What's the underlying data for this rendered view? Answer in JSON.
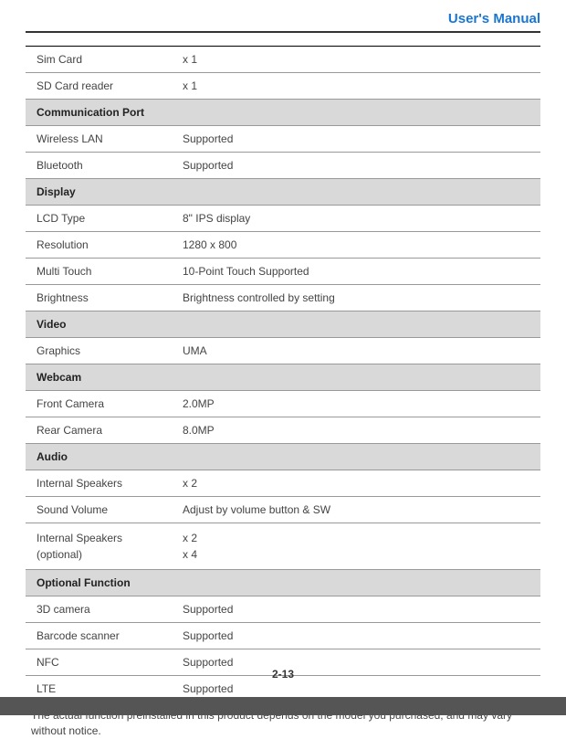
{
  "header": {
    "title": "User's Manual"
  },
  "rows": [
    {
      "type": "data",
      "label": "Sim Card",
      "value": "x 1"
    },
    {
      "type": "data",
      "label": "SD Card reader",
      "value": "x 1"
    },
    {
      "type": "section",
      "label": "Communication Port"
    },
    {
      "type": "data",
      "label": "Wireless LAN",
      "value": "Supported"
    },
    {
      "type": "data",
      "label": "Bluetooth",
      "value": "Supported"
    },
    {
      "type": "section",
      "label": "Display"
    },
    {
      "type": "data",
      "label": "LCD Type",
      "value": "8\" IPS display"
    },
    {
      "type": "data",
      "label": "Resolution",
      "value": "1280 x 800"
    },
    {
      "type": "data",
      "label": "Multi Touch",
      "value": "10-Point Touch Supported"
    },
    {
      "type": "data",
      "label": "Brightness",
      "value": "Brightness controlled by setting"
    },
    {
      "type": "section",
      "label": "Video"
    },
    {
      "type": "data",
      "label": "Graphics",
      "value": "UMA"
    },
    {
      "type": "section",
      "label": "Webcam"
    },
    {
      "type": "data",
      "label": "Front Camera",
      "value": "2.0MP"
    },
    {
      "type": "data",
      "label": "Rear Camera",
      "value": "8.0MP"
    },
    {
      "type": "section",
      "label": "Audio"
    },
    {
      "type": "data",
      "label": "Internal Speakers",
      "value": "x 2"
    },
    {
      "type": "data",
      "label": "Sound Volume",
      "value": "Adjust by volume button & SW"
    },
    {
      "type": "data",
      "label": "Internal Speakers (optional)",
      "value": "x 2\nx 4"
    },
    {
      "type": "section",
      "label": "Optional Function"
    },
    {
      "type": "data",
      "label": "3D camera",
      "value": "Supported"
    },
    {
      "type": "data",
      "label": "Barcode scanner",
      "value": "Supported"
    },
    {
      "type": "data",
      "label": "NFC",
      "value": "Supported"
    },
    {
      "type": "data",
      "label": "LTE",
      "value": "Supported"
    }
  ],
  "note": "The actual function preinstalled in this product depends on the model you purchased, and may vary without notice.",
  "pageNumber": "2-13"
}
